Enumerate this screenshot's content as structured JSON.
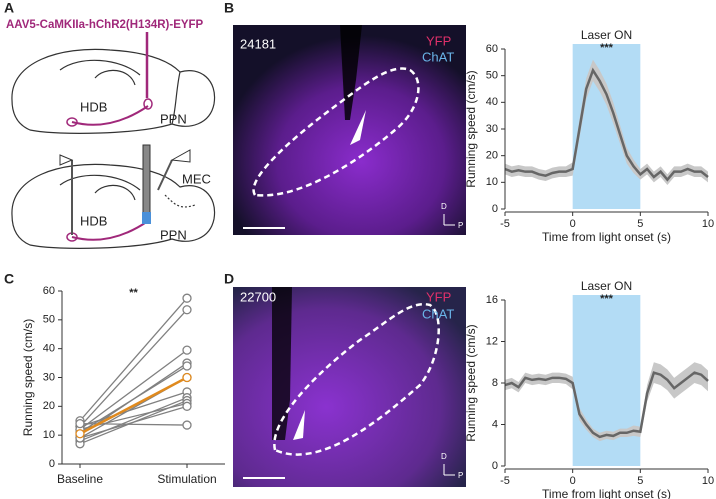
{
  "figure": {
    "panel_labels": [
      "A",
      "B",
      "C",
      "D"
    ],
    "schematic": {
      "virus": "AAV5-CaMKIIa-hChR2(H134R)-EYFP",
      "top_labels": [
        "HDB",
        "PPN"
      ],
      "bottom_labels": [
        "HDB",
        "PPN",
        "MEC"
      ]
    },
    "micrographs": [
      {
        "id": "24181",
        "channels": [
          "YFP",
          "ChAT"
        ],
        "axes": [
          "D",
          "P"
        ]
      },
      {
        "id": "22700",
        "channels": [
          "YFP",
          "ChAT"
        ],
        "axes": [
          "D",
          "P"
        ]
      }
    ]
  },
  "chart_data": [
    {
      "type": "line",
      "annotation": "Laser ON",
      "significance": "***",
      "xlabel": "Time from light onset (s)",
      "ylabel": "Running speed (cm/s)",
      "xlim": [
        -5,
        10
      ],
      "xticks": [
        -5,
        0,
        5,
        10
      ],
      "ylim": [
        0,
        60
      ],
      "yticks": [
        0,
        10,
        20,
        30,
        40,
        50,
        60
      ],
      "laser": [
        0,
        5
      ],
      "laser_color": "#b3dcf5",
      "x": [
        -5,
        -4.5,
        -4,
        -3.5,
        -3,
        -2.5,
        -2,
        -1.5,
        -1,
        -0.5,
        0,
        0.5,
        1,
        1.5,
        2,
        2.5,
        3,
        3.5,
        4,
        4.5,
        5,
        5.5,
        6,
        6.5,
        7,
        7.5,
        8,
        8.5,
        9,
        9.5,
        10
      ],
      "series": [
        {
          "color": "#666666",
          "band_color": "#c8c8c8",
          "values": [
            15,
            14,
            14.5,
            14,
            14,
            13,
            12.5,
            13.5,
            14,
            14,
            15,
            30,
            45,
            52,
            48,
            43,
            36,
            28,
            20,
            16,
            13,
            15,
            12,
            14,
            11,
            14,
            14,
            15,
            14,
            14,
            12
          ],
          "errors": [
            2,
            2,
            2,
            2,
            2,
            2,
            2,
            2,
            2,
            2,
            2.5,
            3.5,
            4,
            4,
            4,
            4,
            4,
            3.5,
            3,
            2.5,
            2,
            2,
            2,
            2,
            2,
            2,
            2,
            2,
            2,
            2,
            2
          ]
        }
      ]
    },
    {
      "type": "paired",
      "significance": "**",
      "ylabel": "Running speed (cm/s)",
      "categories": [
        "Baseline",
        "Stimulation"
      ],
      "ylim": [
        0,
        60
      ],
      "yticks": [
        0,
        10,
        20,
        30,
        40,
        50,
        60
      ],
      "subject_color": "#808080",
      "mean_color": "#e08a1e",
      "subjects": [
        [
          15,
          57.5
        ],
        [
          13,
          53.5
        ],
        [
          12,
          39.5
        ],
        [
          10,
          35
        ],
        [
          11,
          34
        ],
        [
          9,
          30
        ],
        [
          13,
          25
        ],
        [
          8,
          23
        ],
        [
          7,
          22
        ],
        [
          12,
          21
        ],
        [
          9,
          20
        ],
        [
          14,
          13.5
        ]
      ],
      "mean": [
        10.5,
        30
      ]
    },
    {
      "type": "line",
      "annotation": "Laser ON",
      "significance": "***",
      "xlabel": "Time from light onset (s)",
      "ylabel": "Running speed (cm/s)",
      "xlim": [
        -5,
        10
      ],
      "xticks": [
        -5,
        0,
        5,
        10
      ],
      "ylim": [
        0,
        16
      ],
      "yticks": [
        0,
        4,
        8,
        12,
        16
      ],
      "laser": [
        0,
        5
      ],
      "laser_color": "#b3dcf5",
      "x": [
        -5,
        -4.5,
        -4,
        -3.5,
        -3,
        -2.5,
        -2,
        -1.5,
        -1,
        -0.5,
        0,
        0.5,
        1,
        1.5,
        2,
        2.5,
        3,
        3.5,
        4,
        4.5,
        5,
        5.5,
        6,
        6.5,
        7,
        7.5,
        8,
        8.5,
        9,
        9.5,
        10
      ],
      "series": [
        {
          "color": "#666666",
          "band_color": "#c8c8c8",
          "values": [
            7.8,
            8,
            7.6,
            8.5,
            8.3,
            8.4,
            8.3,
            8.5,
            8.5,
            8.4,
            8,
            5,
            4,
            3.2,
            2.8,
            3,
            2.9,
            3.2,
            3.2,
            3.4,
            3.3,
            7,
            9,
            8.8,
            8.3,
            7.5,
            8,
            8.5,
            9,
            8.8,
            8.2
          ],
          "errors": [
            0.5,
            0.5,
            0.5,
            0.5,
            0.5,
            0.5,
            0.5,
            0.5,
            0.5,
            0.5,
            0.6,
            0.6,
            0.5,
            0.4,
            0.4,
            0.4,
            0.4,
            0.4,
            0.4,
            0.5,
            0.5,
            0.8,
            1,
            1,
            1,
            1,
            1,
            1,
            1,
            1,
            1
          ]
        }
      ]
    }
  ]
}
